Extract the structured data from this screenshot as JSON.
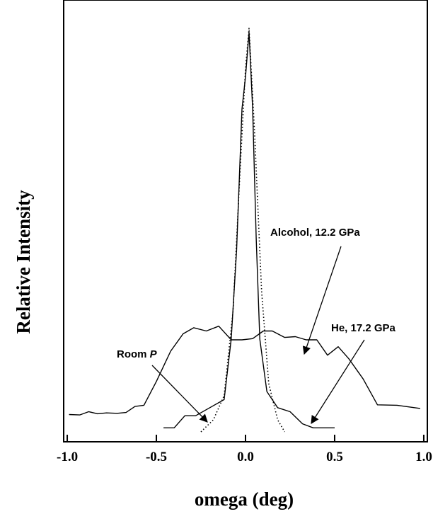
{
  "chart_data": {
    "type": "line",
    "title": "",
    "xlabel": "omega (deg)",
    "ylabel": "Relative Intensity",
    "xlim": [
      -1.02,
      1.02
    ],
    "ylim": [
      0,
      1.0
    ],
    "x_ticks": [
      -1.0,
      -0.5,
      0.0,
      0.5,
      1.0
    ],
    "x_tick_labels": [
      "-1.0",
      "-0.5",
      "0.0",
      "0.5",
      "1.0"
    ],
    "y_tick_labels_shown": false,
    "grid": false,
    "series": [
      {
        "name": "Alcohol, 12.2 GPa",
        "style": "solid",
        "points": [
          [
            -0.99,
            0.043
          ],
          [
            -0.93,
            0.042
          ],
          [
            -0.88,
            0.05
          ],
          [
            -0.83,
            0.045
          ],
          [
            -0.78,
            0.047
          ],
          [
            -0.72,
            0.046
          ],
          [
            -0.67,
            0.048
          ],
          [
            -0.62,
            0.063
          ],
          [
            -0.57,
            0.066
          ],
          [
            -0.5,
            0.125
          ],
          [
            -0.42,
            0.2
          ],
          [
            -0.35,
            0.243
          ],
          [
            -0.29,
            0.258
          ],
          [
            -0.22,
            0.25
          ],
          [
            -0.15,
            0.262
          ],
          [
            -0.08,
            0.228
          ],
          [
            -0.02,
            0.228
          ],
          [
            0.04,
            0.231
          ],
          [
            0.1,
            0.25
          ],
          [
            0.15,
            0.25
          ],
          [
            0.22,
            0.234
          ],
          [
            0.28,
            0.236
          ],
          [
            0.34,
            0.228
          ],
          [
            0.4,
            0.228
          ],
          [
            0.46,
            0.19
          ],
          [
            0.52,
            0.211
          ],
          [
            0.58,
            0.181
          ],
          [
            0.66,
            0.131
          ],
          [
            0.74,
            0.067
          ],
          [
            0.85,
            0.066
          ],
          [
            0.98,
            0.058
          ]
        ]
      },
      {
        "name": "He, 17.2 GPa",
        "style": "solid",
        "points": [
          [
            -0.46,
            0.01
          ],
          [
            -0.4,
            0.01
          ],
          [
            -0.34,
            0.04
          ],
          [
            -0.28,
            0.04
          ],
          [
            -0.2,
            0.06
          ],
          [
            -0.12,
            0.08
          ],
          [
            -0.08,
            0.23
          ],
          [
            -0.05,
            0.45
          ],
          [
            -0.02,
            0.8
          ],
          [
            0.0,
            0.88
          ],
          [
            0.02,
            0.99
          ],
          [
            0.04,
            0.8
          ],
          [
            0.06,
            0.48
          ],
          [
            0.08,
            0.23
          ],
          [
            0.12,
            0.1
          ],
          [
            0.18,
            0.06
          ],
          [
            0.25,
            0.05
          ],
          [
            0.32,
            0.02
          ],
          [
            0.38,
            0.01
          ],
          [
            0.44,
            0.01
          ],
          [
            0.5,
            0.01
          ]
        ]
      },
      {
        "name": "Room P",
        "style": "dotted",
        "points": [
          [
            -0.25,
            0.0
          ],
          [
            -0.18,
            0.03
          ],
          [
            -0.12,
            0.09
          ],
          [
            -0.07,
            0.3
          ],
          [
            -0.03,
            0.65
          ],
          [
            0.0,
            0.9
          ],
          [
            0.02,
            1.0
          ],
          [
            0.05,
            0.75
          ],
          [
            0.09,
            0.35
          ],
          [
            0.13,
            0.12
          ],
          [
            0.18,
            0.03
          ],
          [
            0.22,
            0.0
          ]
        ]
      }
    ],
    "annotations": [
      {
        "text_before": "Room ",
        "text_italic": "P",
        "target_series": "Room P"
      },
      {
        "text": "Alcohol, 12.2 GPa",
        "target_series": "Alcohol, 12.2 GPa"
      },
      {
        "text": "He, 17.2 GPa",
        "target_series": "He, 17.2 GPa"
      }
    ]
  }
}
